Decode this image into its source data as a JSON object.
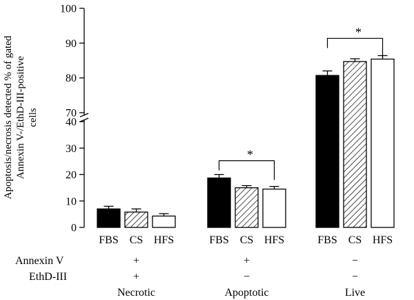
{
  "chart_data": {
    "type": "bar",
    "ylabel_lines": [
      "Apoptosis/necrosis detected % of gated",
      "Annexin V-/EthD-III-positive",
      "cells"
    ],
    "axis_break": true,
    "ylim_lower": [
      0,
      40
    ],
    "ylim_upper": [
      70,
      100
    ],
    "y_ticks_lower": [
      "0",
      "10",
      "20",
      "30",
      "40"
    ],
    "y_ticks_upper": [
      "70",
      "80",
      "90",
      "100"
    ],
    "series_names": [
      "FBS",
      "CS",
      "HFS"
    ],
    "series_fills": [
      "solid-black",
      "hatched",
      "white"
    ],
    "groups": [
      {
        "name": "Necrotic",
        "annexin": "+",
        "ethd": "+",
        "values": [
          7.0,
          5.8,
          4.3
        ],
        "errors": [
          1.0,
          1.2,
          0.9
        ],
        "significance": null
      },
      {
        "name": "Apoptotic",
        "annexin": "+",
        "ethd": "−",
        "values": [
          18.7,
          15.0,
          14.5
        ],
        "errors": [
          1.3,
          0.8,
          1.0
        ],
        "significance": "*"
      },
      {
        "name": "Live",
        "annexin": "−",
        "ethd": "−",
        "values": [
          80.7,
          84.7,
          85.4
        ],
        "errors": [
          1.3,
          0.8,
          1.0
        ],
        "significance": "*"
      }
    ],
    "row_labels": {
      "annexin": "Annexin V",
      "ethd": "EthD-III"
    },
    "colors": {
      "bar_stroke": "#000000",
      "solid": "#000000",
      "background": "#ffffff"
    }
  }
}
